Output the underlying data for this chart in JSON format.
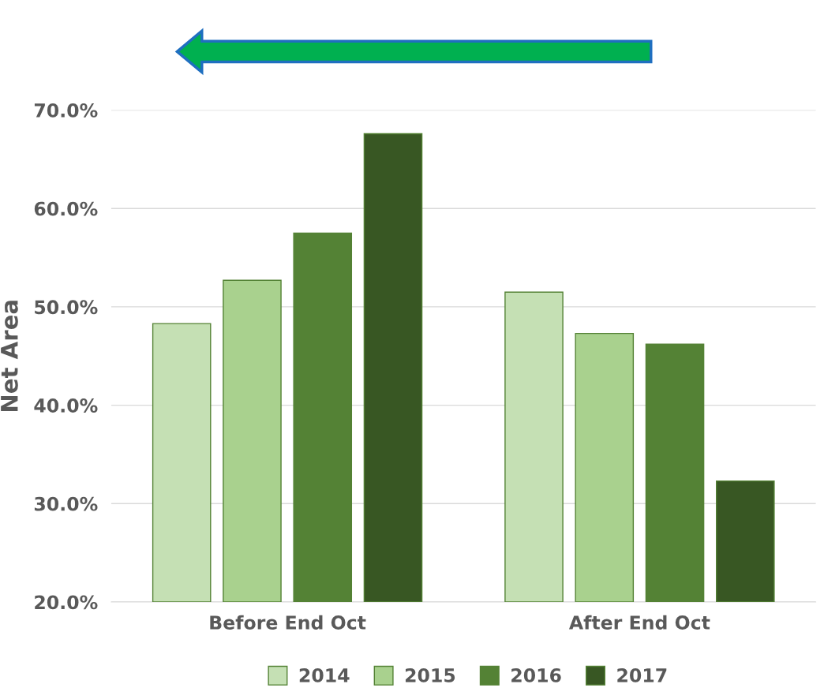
{
  "chart_data": {
    "type": "bar",
    "ylabel": "Net Area",
    "categories": [
      "Before End Oct",
      "After End Oct"
    ],
    "series": [
      {
        "name": "2014",
        "color": "#c5e0b4",
        "values": [
          48.3,
          51.5
        ]
      },
      {
        "name": "2015",
        "color": "#a9d18e",
        "values": [
          52.7,
          47.3
        ]
      },
      {
        "name": "2016",
        "color": "#548235",
        "values": [
          57.5,
          46.2
        ]
      },
      {
        "name": "2017",
        "color": "#385723",
        "values": [
          67.6,
          32.3
        ]
      }
    ],
    "ylim": [
      20,
      70
    ],
    "yticks": [
      {
        "value": 20,
        "label": "20.0%"
      },
      {
        "value": 30,
        "label": "30.0%"
      },
      {
        "value": 40,
        "label": "40.0%"
      },
      {
        "value": 50,
        "label": "50.0%"
      },
      {
        "value": 60,
        "label": "60.0%"
      },
      {
        "value": 70,
        "label": "70.0%"
      }
    ],
    "grid": "y",
    "legend": "bottom"
  }
}
